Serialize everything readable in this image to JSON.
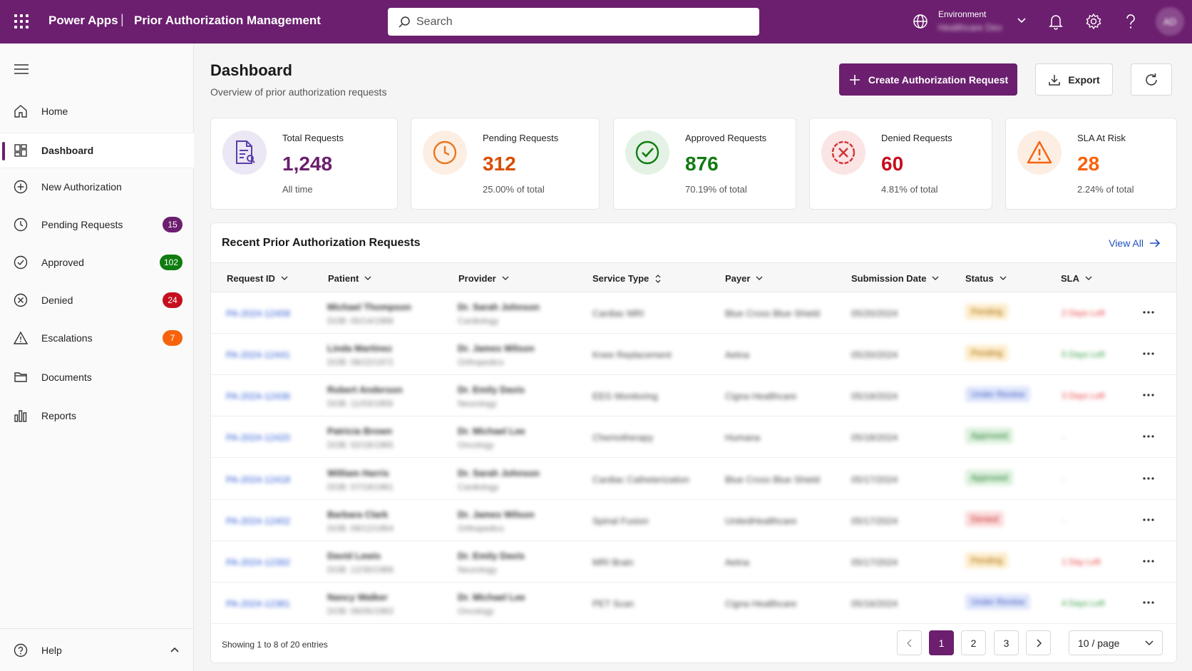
{
  "header": {
    "app_name": "Power Apps",
    "separator": "|",
    "app_title": "Prior Authorization Management",
    "search_placeholder": "Search",
    "environment_label": "Environment",
    "environment_value": "Healthcare Dev",
    "avatar_initials": "AD",
    "icons": [
      "waffle-icon",
      "search-icon",
      "globe-icon",
      "chevron-down-icon",
      "bell-icon",
      "gear-icon",
      "question-icon"
    ]
  },
  "sidebar": {
    "items": [
      {
        "label": "Home",
        "icon": "home-icon"
      },
      {
        "label": "Dashboard",
        "icon": "dashboard-icon",
        "active": true
      },
      {
        "label": "New Authorization",
        "icon": "plus-circle-icon"
      },
      {
        "label": "Pending Requests",
        "icon": "clock-icon",
        "badge": "15",
        "badge_color": "#6b1f6e"
      },
      {
        "label": "Approved",
        "icon": "check-circle-icon",
        "badge": "102",
        "badge_color": "#107c10"
      },
      {
        "label": "Denied",
        "icon": "x-circle-icon",
        "badge": "24",
        "badge_color": "#c50f1f"
      },
      {
        "label": "Escalations",
        "icon": "warning-icon",
        "badge": "7",
        "badge_color": "#f7630c"
      },
      {
        "label": "Documents",
        "icon": "folder-icon"
      },
      {
        "label": "Reports",
        "icon": "bar-chart-icon"
      }
    ],
    "help_label": "Help"
  },
  "main": {
    "title": "Dashboard",
    "subtitle": "Overview of prior authorization requests",
    "create_button": "Create Authorization Request",
    "export_button": "Export"
  },
  "stats": [
    {
      "label": "Total Requests",
      "value": "1,248",
      "sub": "All time",
      "color": "#6b1f6e",
      "icon": "document-icon"
    },
    {
      "label": "Pending Requests",
      "value": "312",
      "sub": "25.00% of total",
      "color": "#d84e00",
      "icon": "clock-icon"
    },
    {
      "label": "Approved Requests",
      "value": "876",
      "sub": "70.19% of total",
      "color": "#107c10",
      "icon": "check-circle-icon"
    },
    {
      "label": "Denied Requests",
      "value": "60",
      "sub": "4.81% of total",
      "color": "#c50f1f",
      "icon": "x-circle-icon"
    },
    {
      "label": "SLA At Risk",
      "value": "28",
      "sub": "2.24% of total",
      "color": "#f7630c",
      "icon": "warning-icon"
    }
  ],
  "table": {
    "title": "Recent Prior Authorization Requests",
    "view_all": "View All",
    "columns": [
      "Request ID",
      "Patient",
      "Provider",
      "Service Type",
      "Payer",
      "Submission Date",
      "Status",
      "SLA"
    ],
    "rows": [
      {
        "id": "PA-2024-12458",
        "patient": "Michael Thompson",
        "dob": "DOB: 05/14/1968",
        "provider": "Dr. Sarah Johnson",
        "specialty": "Cardiology",
        "service": "Cardiac MRI",
        "payer": "Blue Cross Blue Shield",
        "date": "05/20/2024",
        "status": "Pending",
        "status_class": "st-pending",
        "sla": "2 Days Left",
        "sla_color": "#e83b3b"
      },
      {
        "id": "PA-2024-12441",
        "patient": "Linda Martinez",
        "dob": "DOB: 08/22/1972",
        "provider": "Dr. James Wilson",
        "specialty": "Orthopedics",
        "service": "Knee Replacement",
        "payer": "Aetna",
        "date": "05/20/2024",
        "status": "Pending",
        "status_class": "st-pending",
        "sla": "5 Days Left",
        "sla_color": "#2e9a3a"
      },
      {
        "id": "PA-2024-12436",
        "patient": "Robert Anderson",
        "dob": "DOB: 11/03/1959",
        "provider": "Dr. Emily Davis",
        "specialty": "Neurology",
        "service": "EEG Monitoring",
        "payer": "Cigna Healthcare",
        "date": "05/19/2024",
        "status": "Under Review",
        "status_class": "st-review",
        "sla": "3 Days Left",
        "sla_color": "#e83b3b"
      },
      {
        "id": "PA-2024-12420",
        "patient": "Patricia Brown",
        "dob": "DOB: 02/18/1965",
        "provider": "Dr. Michael Lee",
        "specialty": "Oncology",
        "service": "Chemotherapy",
        "payer": "Humana",
        "date": "05/18/2024",
        "status": "Approved",
        "status_class": "st-approved",
        "sla": "-",
        "sla_color": "#999999"
      },
      {
        "id": "PA-2024-12418",
        "patient": "William Harris",
        "dob": "DOB: 07/19/1961",
        "provider": "Dr. Sarah Johnson",
        "specialty": "Cardiology",
        "service": "Cardiac Catheterization",
        "payer": "Blue Cross Blue Shield",
        "date": "05/17/2024",
        "status": "Approved",
        "status_class": "st-approved",
        "sla": "-",
        "sla_color": "#999999"
      },
      {
        "id": "PA-2024-12402",
        "patient": "Barbara Clark",
        "dob": "DOB: 09/12/1954",
        "provider": "Dr. James Wilson",
        "specialty": "Orthopedics",
        "service": "Spinal Fusion",
        "payer": "UnitedHealthcare",
        "date": "05/17/2024",
        "status": "Denied",
        "status_class": "st-denied",
        "sla": "-",
        "sla_color": "#999999"
      },
      {
        "id": "PA-2024-12392",
        "patient": "David Lewis",
        "dob": "DOB: 12/30/1969",
        "provider": "Dr. Emily Davis",
        "specialty": "Neurology",
        "service": "MRI Brain",
        "payer": "Aetna",
        "date": "05/17/2024",
        "status": "Pending",
        "status_class": "st-pending",
        "sla": "1 Day Left",
        "sla_color": "#e83b3b"
      },
      {
        "id": "PA-2024-12381",
        "patient": "Nancy Walker",
        "dob": "DOB: 06/05/1963",
        "provider": "Dr. Michael Lee",
        "specialty": "Oncology",
        "service": "PET Scan",
        "payer": "Cigna Healthcare",
        "date": "05/16/2024",
        "status": "Under Review",
        "status_class": "st-review",
        "sla": "4 Days Left",
        "sla_color": "#2e9a3a"
      }
    ],
    "footer": "Showing 1 to 8 of 20 entries",
    "pages": [
      "1",
      "2",
      "3"
    ],
    "per_page": "10 / page"
  }
}
